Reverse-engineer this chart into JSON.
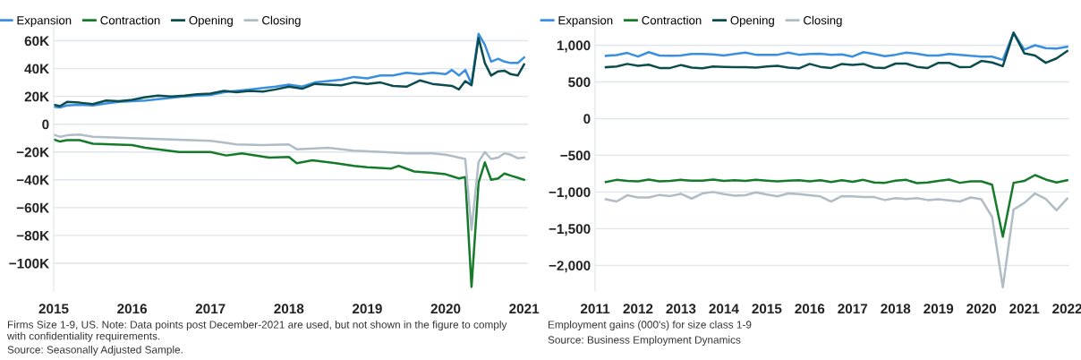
{
  "chart_data": [
    {
      "type": "line",
      "grid": "y",
      "legend": "top left",
      "marker": "none",
      "line_style": "solid",
      "xlim": [
        2015,
        2021.05
      ],
      "xticks": [
        2015,
        2016,
        2017,
        2018,
        2019,
        2020,
        2021
      ],
      "ylim": [
        -120000,
        70000
      ],
      "yticks": [
        {
          "value": -100000,
          "label": "−100K"
        },
        {
          "value": -80000,
          "label": "−80K"
        },
        {
          "value": -60000,
          "label": "−60K"
        },
        {
          "value": -40000,
          "label": "−40K"
        },
        {
          "value": -20000,
          "label": "−20K"
        },
        0,
        {
          "value": 20000,
          "label": "20K"
        },
        {
          "value": 40000,
          "label": "40K"
        },
        {
          "value": 60000,
          "label": "60K"
        }
      ],
      "series": [
        {
          "name": "Expansion",
          "color": "#3a8fe0",
          "x": [
            2015.0,
            2015.08,
            2015.17,
            2015.33,
            2015.5,
            2015.67,
            2015.83,
            2016.0,
            2016.17,
            2016.33,
            2016.5,
            2016.67,
            2016.83,
            2017.0,
            2017.17,
            2017.33,
            2017.5,
            2017.67,
            2017.83,
            2018.0,
            2018.17,
            2018.33,
            2018.5,
            2018.67,
            2018.83,
            2019.0,
            2019.17,
            2019.33,
            2019.5,
            2019.67,
            2019.83,
            2020.0,
            2020.08,
            2020.17,
            2020.25,
            2020.33,
            2020.42,
            2020.5,
            2020.58,
            2020.67,
            2020.75,
            2020.83,
            2020.92,
            2021.0
          ],
          "values": [
            12500,
            12000,
            13500,
            14000,
            13500,
            15000,
            16000,
            16500,
            17000,
            18000,
            19000,
            20000,
            20500,
            21000,
            23000,
            24000,
            25000,
            26000,
            27000,
            28500,
            27000,
            30000,
            31000,
            32000,
            34000,
            33000,
            35000,
            35000,
            37000,
            36000,
            37000,
            36000,
            39000,
            35000,
            39000,
            29000,
            65000,
            57000,
            45000,
            47000,
            45000,
            44000,
            44000,
            48000
          ]
        },
        {
          "name": "Contraction",
          "color": "#157a2a",
          "x": [
            2015.0,
            2015.08,
            2015.17,
            2015.33,
            2015.5,
            2016.0,
            2016.17,
            2016.6,
            2017.0,
            2017.2,
            2017.4,
            2017.75,
            2018.0,
            2018.1,
            2018.3,
            2018.6,
            2018.83,
            2019.0,
            2019.3,
            2019.4,
            2019.6,
            2019.83,
            2020.0,
            2020.17,
            2020.25,
            2020.33,
            2020.42,
            2020.5,
            2020.58,
            2020.67,
            2020.75,
            2020.83,
            2020.92,
            2021.0
          ],
          "values": [
            -11000,
            -12500,
            -11500,
            -11500,
            -14000,
            -15000,
            -17000,
            -20000,
            -20000,
            -22500,
            -21000,
            -24000,
            -23500,
            -28000,
            -26000,
            -28000,
            -30000,
            -31000,
            -32000,
            -30000,
            -34000,
            -35000,
            -36000,
            -39000,
            -38000,
            -117000,
            -42000,
            -27500,
            -40000,
            -39000,
            -35500,
            -37000,
            -38500,
            -40000
          ]
        },
        {
          "name": "Opening",
          "color": "#0b4d4f",
          "x": [
            2015.0,
            2015.08,
            2015.17,
            2015.33,
            2015.5,
            2015.67,
            2015.83,
            2016.0,
            2016.17,
            2016.33,
            2016.5,
            2016.67,
            2016.83,
            2017.0,
            2017.17,
            2017.33,
            2017.5,
            2017.67,
            2017.83,
            2018.0,
            2018.17,
            2018.33,
            2018.5,
            2018.67,
            2018.83,
            2019.0,
            2019.17,
            2019.33,
            2019.5,
            2019.67,
            2019.83,
            2020.0,
            2020.08,
            2020.17,
            2020.25,
            2020.33,
            2020.42,
            2020.5,
            2020.58,
            2020.67,
            2020.75,
            2020.83,
            2020.92,
            2021.0
          ],
          "values": [
            14000,
            13000,
            16000,
            15500,
            14500,
            17000,
            16500,
            17500,
            19500,
            20500,
            20000,
            20500,
            21500,
            22000,
            24000,
            23000,
            24000,
            23500,
            25000,
            27000,
            25500,
            29000,
            28500,
            28000,
            30000,
            29000,
            30000,
            27500,
            27000,
            31500,
            29000,
            28000,
            27500,
            25000,
            31000,
            28000,
            62000,
            44000,
            35000,
            38000,
            38500,
            36000,
            35000,
            43000
          ]
        },
        {
          "name": "Closing",
          "color": "#b0bcc6",
          "x": [
            2015.0,
            2015.08,
            2015.17,
            2015.33,
            2015.5,
            2016.0,
            2016.5,
            2017.0,
            2017.33,
            2017.67,
            2018.0,
            2018.1,
            2018.5,
            2018.83,
            2019.2,
            2019.5,
            2019.83,
            2020.0,
            2020.17,
            2020.25,
            2020.33,
            2020.42,
            2020.5,
            2020.58,
            2020.67,
            2020.75,
            2020.83,
            2020.92,
            2021.0
          ],
          "values": [
            -7500,
            -9000,
            -8000,
            -7500,
            -9000,
            -10000,
            -11000,
            -12000,
            -14500,
            -15000,
            -14500,
            -18000,
            -17000,
            -19000,
            -20000,
            -21000,
            -21000,
            -22000,
            -24000,
            -25000,
            -76000,
            -27000,
            -20000,
            -25000,
            -24000,
            -21000,
            -22000,
            -24500,
            -24000
          ]
        }
      ],
      "annotations": [
        "Firms Size 1-9, US. Note: Data points post December-2021 are used, but not shown in the figure to comply with confidentiality requirements.",
        "Source: Seasonally Adjusted Sample."
      ]
    },
    {
      "type": "line",
      "grid": "y",
      "legend": "top left",
      "marker": "none",
      "line_style": "solid",
      "xlim": [
        2011,
        2022.05
      ],
      "xticks": [
        2011,
        2012,
        2013,
        2014,
        2015,
        2016,
        2017,
        2018,
        2019,
        2020,
        2021,
        2022
      ],
      "ylim": [
        -2350,
        1250
      ],
      "yticks": [
        {
          "value": -2000,
          "label": "−2,000"
        },
        {
          "value": -1500,
          "label": "−1,500"
        },
        {
          "value": -1000,
          "label": "−1,000"
        },
        {
          "value": -500,
          "label": "−500"
        },
        0,
        500,
        {
          "value": 1000,
          "label": "1,000"
        }
      ],
      "x": [
        2011.25,
        2011.5,
        2011.75,
        2012.0,
        2012.25,
        2012.5,
        2012.75,
        2013.0,
        2013.25,
        2013.5,
        2013.75,
        2014.0,
        2014.25,
        2014.5,
        2014.75,
        2015.0,
        2015.25,
        2015.5,
        2015.75,
        2016.0,
        2016.25,
        2016.5,
        2016.75,
        2017.0,
        2017.25,
        2017.5,
        2017.75,
        2018.0,
        2018.25,
        2018.5,
        2018.75,
        2019.0,
        2019.25,
        2019.5,
        2019.75,
        2020.0,
        2020.25,
        2020.5,
        2020.75,
        2021.0,
        2021.25,
        2021.5,
        2021.75,
        2022.0
      ],
      "series": [
        {
          "name": "Expansion",
          "color": "#3a8fe0",
          "values": [
            855,
            865,
            895,
            845,
            905,
            860,
            855,
            860,
            880,
            880,
            875,
            860,
            880,
            900,
            870,
            870,
            870,
            900,
            870,
            880,
            885,
            870,
            875,
            845,
            905,
            880,
            850,
            870,
            900,
            885,
            860,
            860,
            880,
            870,
            855,
            845,
            845,
            800,
            1170,
            940,
            1000,
            960,
            955,
            980
          ]
        },
        {
          "name": "Contraction",
          "color": "#157a2a",
          "values": [
            -865,
            -835,
            -850,
            -855,
            -830,
            -855,
            -850,
            -835,
            -845,
            -845,
            -830,
            -850,
            -840,
            -850,
            -835,
            -845,
            -855,
            -845,
            -840,
            -855,
            -840,
            -865,
            -840,
            -860,
            -835,
            -870,
            -875,
            -845,
            -835,
            -880,
            -870,
            -850,
            -830,
            -875,
            -855,
            -855,
            -900,
            -1610,
            -875,
            -850,
            -770,
            -830,
            -870,
            -840
          ]
        },
        {
          "name": "Opening",
          "color": "#0b4d4f",
          "values": [
            700,
            710,
            745,
            720,
            735,
            690,
            690,
            730,
            695,
            685,
            710,
            705,
            700,
            700,
            695,
            710,
            720,
            695,
            685,
            745,
            705,
            690,
            745,
            730,
            745,
            695,
            690,
            750,
            750,
            705,
            690,
            760,
            760,
            700,
            705,
            785,
            765,
            715,
            1170,
            890,
            860,
            760,
            820,
            920
          ]
        },
        {
          "name": "Closing",
          "color": "#b0bcc6",
          "values": [
            -1100,
            -1130,
            -1045,
            -1075,
            -1075,
            -1040,
            -1055,
            -1025,
            -1090,
            -1020,
            -1000,
            -1030,
            -1050,
            -1045,
            -1005,
            -1035,
            -1060,
            -1020,
            -1030,
            -1045,
            -1060,
            -1130,
            -1055,
            -1060,
            -1070,
            -1070,
            -1110,
            -1085,
            -1095,
            -1085,
            -1110,
            -1100,
            -1115,
            -1130,
            -1075,
            -1100,
            -1340,
            -2300,
            -1240,
            -1150,
            -1020,
            -1095,
            -1250,
            -1090
          ]
        }
      ],
      "annotations": [
        "Employment gains (000's) for size class 1-9",
        "Source: Business Employment Dynamics"
      ]
    }
  ]
}
